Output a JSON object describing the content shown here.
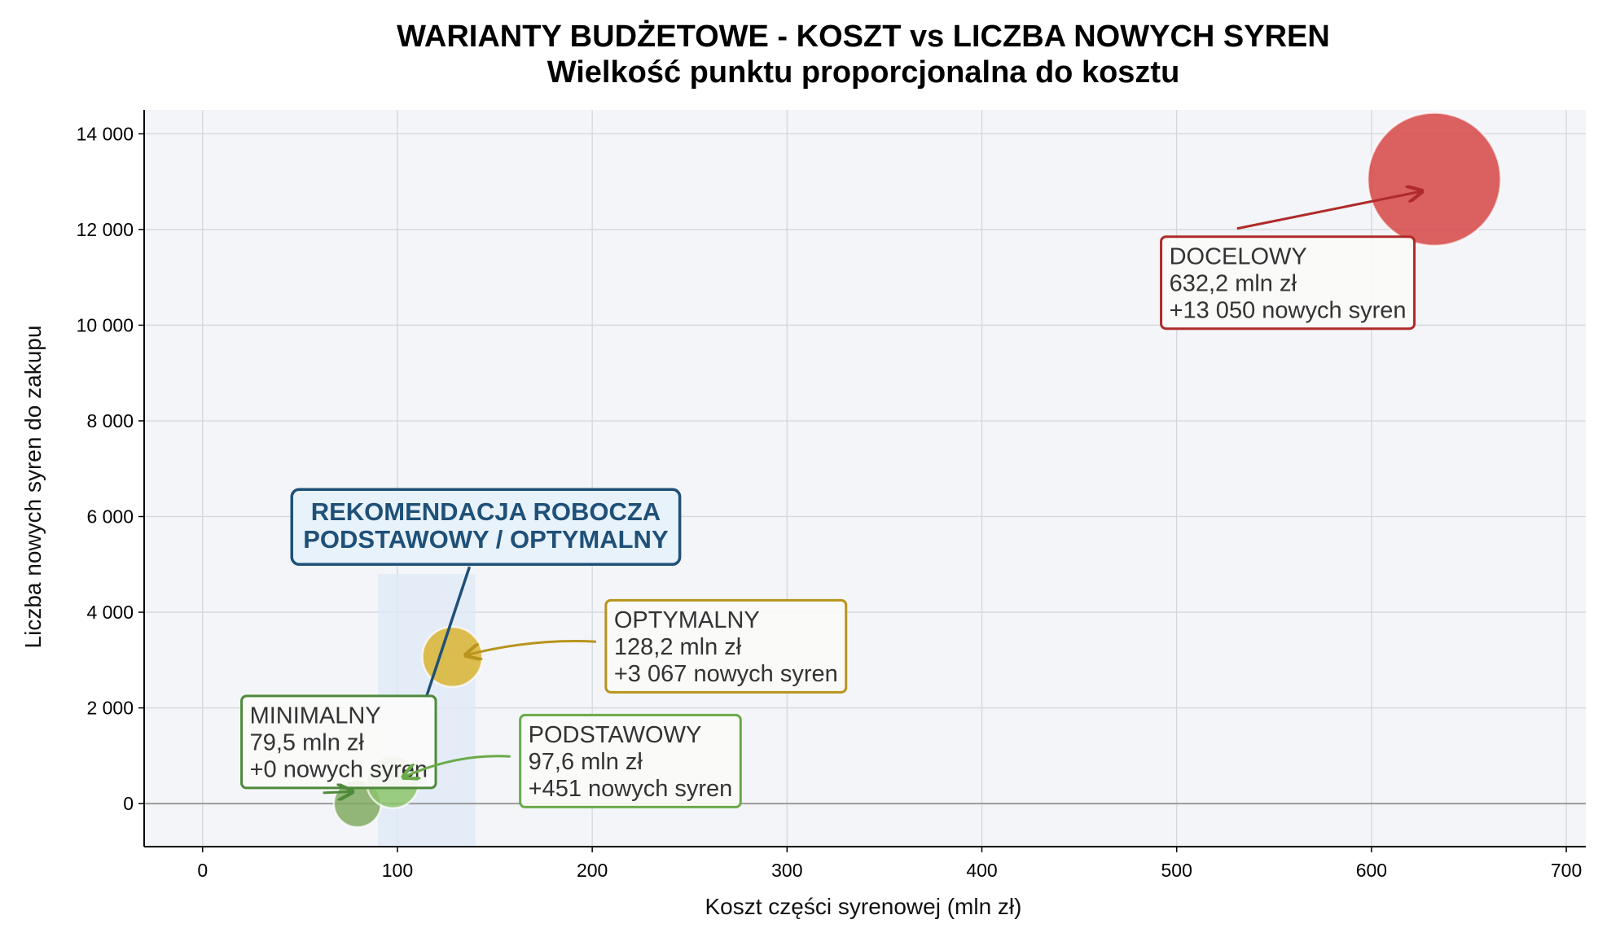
{
  "chart_data": {
    "type": "scatter",
    "title": "WARIANTY BUDŻETOWE - KOSZT vs LICZBA NOWYCH SYREN",
    "subtitle": "Wielkość punktu proporcjonalna do kosztu",
    "xlabel": "Koszt części syrenowej (mln zł)",
    "ylabel": "Liczba nowych syren do zakupu",
    "xlim": [
      -30,
      710
    ],
    "ylim": [
      -900,
      14500
    ],
    "xticks": [
      0,
      100,
      200,
      300,
      400,
      500,
      600,
      700
    ],
    "yticks": [
      0,
      2000,
      4000,
      6000,
      8000,
      10000,
      12000,
      14000
    ],
    "xtick_labels": [
      "0",
      "100",
      "200",
      "300",
      "400",
      "500",
      "600",
      "700"
    ],
    "ytick_labels": [
      "0",
      "2 000",
      "4 000",
      "6 000",
      "8 000",
      "10 000",
      "12 000",
      "14 000"
    ],
    "grid": true,
    "zero_line": 0,
    "highlight_band": {
      "x0": 90,
      "x1": 140,
      "y0": -900,
      "y1": 4800,
      "color": "#dfe9f7"
    },
    "series": [
      {
        "name": "MINIMALNY",
        "x": 79.5,
        "y": 0,
        "color": "#7faa62",
        "label_lines": [
          "MINIMALNY",
          "79,5 mln zł",
          "+0 nowych syren"
        ],
        "label_at": [
          20,
          2250
        ],
        "arrow_to": [
          77,
          250
        ],
        "border": "#4e8a3a"
      },
      {
        "name": "PODSTAWOWY",
        "x": 97.6,
        "y": 451,
        "color": "#8cc46b",
        "label_lines": [
          "PODSTAWOWY",
          "97,6 mln zł",
          "+451 nowych syren"
        ],
        "label_at": [
          163,
          1850
        ],
        "arrow_to": [
          103,
          550
        ],
        "border": "#6aaa4a"
      },
      {
        "name": "OPTYMALNY",
        "x": 128.2,
        "y": 3067,
        "color": "#d9b331",
        "label_lines": [
          "OPTYMALNY",
          "128,2 mln zł",
          "+3 067 nowych syren"
        ],
        "label_at": [
          207,
          4250
        ],
        "arrow_to": [
          135,
          3100
        ],
        "border": "#b8941c"
      },
      {
        "name": "DOCELOWY",
        "x": 632.2,
        "y": 13050,
        "color": "#d64545",
        "label_lines": [
          "DOCELOWY",
          "632,2 mln zł",
          "+13 050 nowych syren"
        ],
        "label_at": [
          492,
          11850
        ],
        "arrow_to": [
          626,
          12800
        ],
        "border": "#b02a2a"
      }
    ],
    "recommendation": {
      "lines": [
        "REKOMENDACJA ROBOCZA",
        "PODSTAWOWY / OPTYMALNY"
      ],
      "color": "#1f5078",
      "fill": "#e8f2fb",
      "anchor": [
        137,
        4950
      ],
      "line_to": [
        115,
        2250
      ]
    }
  }
}
